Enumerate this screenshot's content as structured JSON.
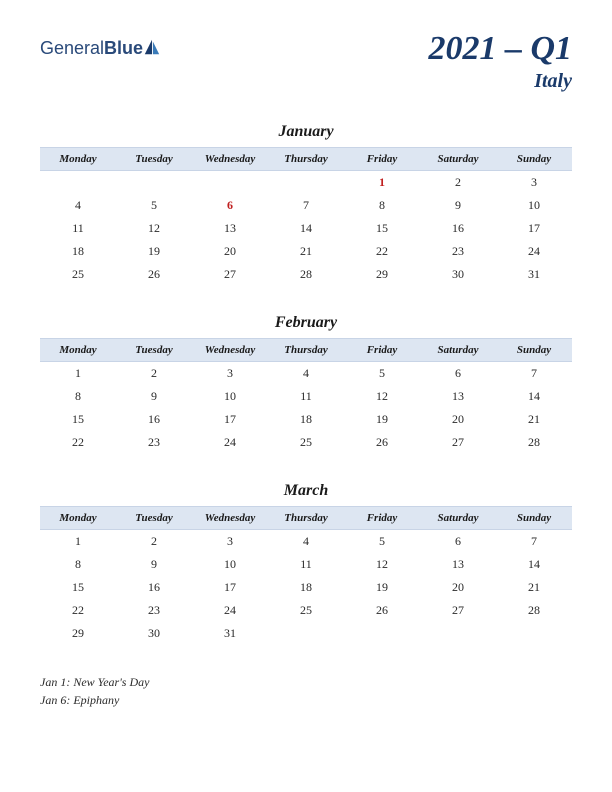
{
  "brand": {
    "name_part1": "General",
    "name_part2": "Blue"
  },
  "title": "2021 – Q1",
  "subtitle": "Italy",
  "colors": {
    "header_bg": "#dde6f2",
    "header_border": "#c8d4e6",
    "title_color": "#1a3a6a",
    "text_color": "#2a2a2a",
    "holiday_color": "#c02020",
    "logo_blue": "#3a7ab8",
    "logo_dark": "#1a3a6a"
  },
  "day_headers": [
    "Monday",
    "Tuesday",
    "Wednesday",
    "Thursday",
    "Friday",
    "Saturday",
    "Sunday"
  ],
  "months": [
    {
      "name": "January",
      "weeks": [
        [
          "",
          "",
          "",
          "",
          "1",
          "2",
          "3"
        ],
        [
          "4",
          "5",
          "6",
          "7",
          "8",
          "9",
          "10"
        ],
        [
          "11",
          "12",
          "13",
          "14",
          "15",
          "16",
          "17"
        ],
        [
          "18",
          "19",
          "20",
          "21",
          "22",
          "23",
          "24"
        ],
        [
          "25",
          "26",
          "27",
          "28",
          "29",
          "30",
          "31"
        ]
      ],
      "holidays": [
        "1",
        "6"
      ]
    },
    {
      "name": "February",
      "weeks": [
        [
          "1",
          "2",
          "3",
          "4",
          "5",
          "6",
          "7"
        ],
        [
          "8",
          "9",
          "10",
          "11",
          "12",
          "13",
          "14"
        ],
        [
          "15",
          "16",
          "17",
          "18",
          "19",
          "20",
          "21"
        ],
        [
          "22",
          "23",
          "24",
          "25",
          "26",
          "27",
          "28"
        ]
      ],
      "holidays": []
    },
    {
      "name": "March",
      "weeks": [
        [
          "1",
          "2",
          "3",
          "4",
          "5",
          "6",
          "7"
        ],
        [
          "8",
          "9",
          "10",
          "11",
          "12",
          "13",
          "14"
        ],
        [
          "15",
          "16",
          "17",
          "18",
          "19",
          "20",
          "21"
        ],
        [
          "22",
          "23",
          "24",
          "25",
          "26",
          "27",
          "28"
        ],
        [
          "29",
          "30",
          "31",
          "",
          "",
          "",
          ""
        ]
      ],
      "holidays": []
    }
  ],
  "holiday_list": [
    "Jan 1: New Year's Day",
    "Jan 6: Epiphany"
  ]
}
